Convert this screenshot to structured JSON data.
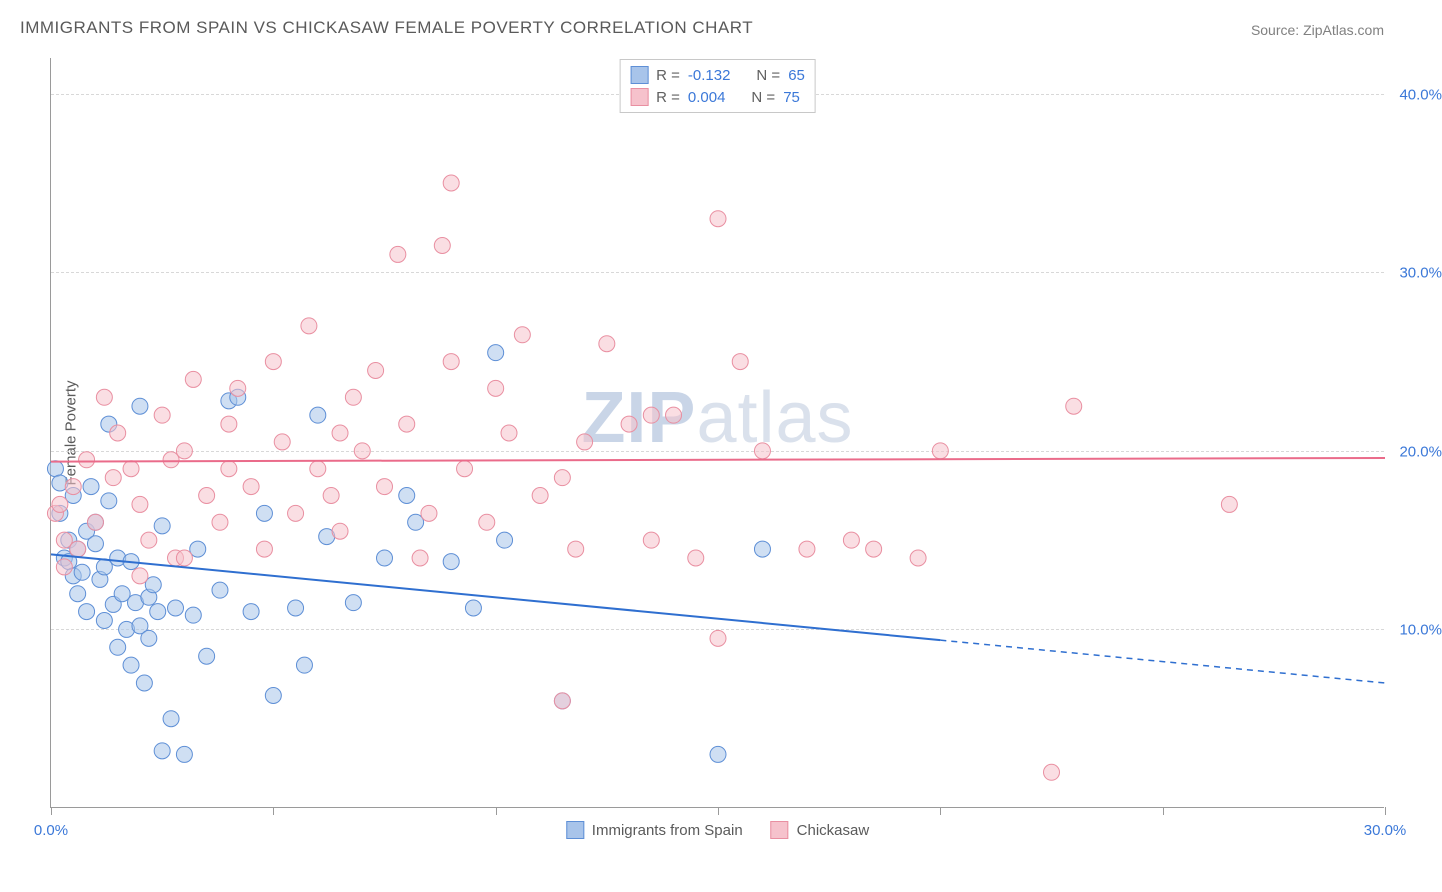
{
  "title": "IMMIGRANTS FROM SPAIN VS CHICKASAW FEMALE POVERTY CORRELATION CHART",
  "source": "Source: ZipAtlas.com",
  "ylabel": "Female Poverty",
  "watermark_bold": "ZIP",
  "watermark_light": "atlas",
  "chart": {
    "type": "scatter",
    "background_color": "#ffffff",
    "grid_color": "#d8d8d8",
    "axis_color": "#9a9a9a",
    "xlim": [
      0,
      30
    ],
    "ylim": [
      0,
      42
    ],
    "yticks": [
      10,
      20,
      30,
      40
    ],
    "ytick_labels": [
      "10.0%",
      "20.0%",
      "30.0%",
      "40.0%"
    ],
    "xticks": [
      0,
      5,
      10,
      15,
      20,
      25,
      30
    ],
    "xtick_labels": {
      "0": "0.0%",
      "30": "30.0%"
    },
    "label_fontsize": 15,
    "label_color": "#3b78d8",
    "marker_radius": 8,
    "marker_opacity": 0.55,
    "line_width": 2
  },
  "series": [
    {
      "name": "Immigrants from Spain",
      "fill_color": "#a8c4ea",
      "stroke_color": "#5e8fd6",
      "line_color": "#2f6fd0",
      "R": "-0.132",
      "N": "65",
      "trend": {
        "y_at_x0": 14.2,
        "y_at_x30": 7.0,
        "solid_until_x": 20
      },
      "points": [
        [
          0.1,
          19.0
        ],
        [
          0.2,
          16.5
        ],
        [
          0.2,
          18.2
        ],
        [
          0.3,
          14.0
        ],
        [
          0.4,
          13.8
        ],
        [
          0.4,
          15.0
        ],
        [
          0.5,
          17.5
        ],
        [
          0.5,
          13.0
        ],
        [
          0.6,
          14.5
        ],
        [
          0.6,
          12.0
        ],
        [
          0.7,
          13.2
        ],
        [
          0.8,
          15.5
        ],
        [
          0.8,
          11.0
        ],
        [
          0.9,
          18.0
        ],
        [
          1.0,
          14.8
        ],
        [
          1.0,
          16.0
        ],
        [
          1.1,
          12.8
        ],
        [
          1.2,
          10.5
        ],
        [
          1.2,
          13.5
        ],
        [
          1.3,
          17.2
        ],
        [
          1.4,
          11.4
        ],
        [
          1.5,
          14.0
        ],
        [
          1.5,
          9.0
        ],
        [
          1.6,
          12.0
        ],
        [
          1.7,
          10.0
        ],
        [
          1.8,
          13.8
        ],
        [
          1.8,
          8.0
        ],
        [
          1.9,
          11.5
        ],
        [
          2.0,
          22.5
        ],
        [
          2.0,
          10.2
        ],
        [
          2.1,
          7.0
        ],
        [
          2.2,
          11.8
        ],
        [
          2.2,
          9.5
        ],
        [
          2.3,
          12.5
        ],
        [
          2.4,
          11.0
        ],
        [
          2.5,
          15.8
        ],
        [
          2.5,
          3.2
        ],
        [
          2.7,
          5.0
        ],
        [
          2.8,
          11.2
        ],
        [
          3.0,
          3.0
        ],
        [
          3.2,
          10.8
        ],
        [
          3.3,
          14.5
        ],
        [
          3.5,
          8.5
        ],
        [
          3.8,
          12.2
        ],
        [
          4.0,
          22.8
        ],
        [
          4.2,
          23.0
        ],
        [
          4.5,
          11.0
        ],
        [
          4.8,
          16.5
        ],
        [
          5.5,
          11.2
        ],
        [
          5.7,
          8.0
        ],
        [
          6.0,
          22.0
        ],
        [
          6.2,
          15.2
        ],
        [
          6.8,
          11.5
        ],
        [
          7.5,
          14.0
        ],
        [
          8.0,
          17.5
        ],
        [
          8.2,
          16.0
        ],
        [
          9.0,
          13.8
        ],
        [
          9.5,
          11.2
        ],
        [
          10.0,
          25.5
        ],
        [
          10.2,
          15.0
        ],
        [
          11.5,
          6.0
        ],
        [
          15.0,
          3.0
        ],
        [
          16.0,
          14.5
        ],
        [
          5.0,
          6.3
        ],
        [
          1.3,
          21.5
        ]
      ]
    },
    {
      "name": "Chickasaw",
      "fill_color": "#f6c2cc",
      "stroke_color": "#e98fa1",
      "line_color": "#ea6b8a",
      "R": "0.004",
      "N": "75",
      "trend": {
        "y_at_x0": 19.4,
        "y_at_x30": 19.6,
        "solid_until_x": 30
      },
      "points": [
        [
          0.1,
          16.5
        ],
        [
          0.2,
          17.0
        ],
        [
          0.3,
          15.0
        ],
        [
          0.3,
          13.5
        ],
        [
          0.5,
          18.0
        ],
        [
          0.6,
          14.5
        ],
        [
          0.8,
          19.5
        ],
        [
          1.0,
          16.0
        ],
        [
          1.2,
          23.0
        ],
        [
          1.4,
          18.5
        ],
        [
          1.5,
          21.0
        ],
        [
          1.8,
          19.0
        ],
        [
          2.0,
          17.0
        ],
        [
          2.2,
          15.0
        ],
        [
          2.5,
          22.0
        ],
        [
          2.7,
          19.5
        ],
        [
          2.8,
          14.0
        ],
        [
          3.0,
          20.0
        ],
        [
          3.2,
          24.0
        ],
        [
          3.5,
          17.5
        ],
        [
          3.8,
          16.0
        ],
        [
          4.0,
          21.5
        ],
        [
          4.2,
          23.5
        ],
        [
          4.5,
          18.0
        ],
        [
          4.8,
          14.5
        ],
        [
          5.0,
          25.0
        ],
        [
          5.2,
          20.5
        ],
        [
          5.5,
          16.5
        ],
        [
          5.8,
          27.0
        ],
        [
          6.0,
          19.0
        ],
        [
          6.3,
          17.5
        ],
        [
          6.5,
          15.5
        ],
        [
          6.8,
          23.0
        ],
        [
          7.0,
          20.0
        ],
        [
          7.3,
          24.5
        ],
        [
          7.5,
          18.0
        ],
        [
          7.8,
          31.0
        ],
        [
          8.0,
          21.5
        ],
        [
          8.3,
          14.0
        ],
        [
          8.5,
          16.5
        ],
        [
          8.8,
          31.5
        ],
        [
          9.0,
          25.0
        ],
        [
          9.3,
          19.0
        ],
        [
          9.0,
          35.0
        ],
        [
          9.8,
          16.0
        ],
        [
          10.0,
          23.5
        ],
        [
          10.3,
          21.0
        ],
        [
          10.6,
          26.5
        ],
        [
          11.0,
          17.5
        ],
        [
          11.5,
          18.5
        ],
        [
          11.5,
          6.0
        ],
        [
          12.0,
          20.5
        ],
        [
          12.5,
          26.0
        ],
        [
          13.0,
          21.5
        ],
        [
          13.5,
          15.0
        ],
        [
          14.0,
          22.0
        ],
        [
          14.5,
          14.0
        ],
        [
          15.0,
          33.0
        ],
        [
          15.0,
          9.5
        ],
        [
          15.5,
          25.0
        ],
        [
          16.0,
          20.0
        ],
        [
          17.0,
          14.5
        ],
        [
          18.0,
          15.0
        ],
        [
          18.5,
          14.5
        ],
        [
          19.5,
          14.0
        ],
        [
          20.0,
          20.0
        ],
        [
          23.0,
          22.5
        ],
        [
          22.5,
          2.0
        ],
        [
          26.5,
          17.0
        ],
        [
          4.0,
          19.0
        ],
        [
          6.5,
          21.0
        ],
        [
          2.0,
          13.0
        ],
        [
          3.0,
          14.0
        ],
        [
          11.8,
          14.5
        ],
        [
          13.5,
          22.0
        ]
      ]
    }
  ],
  "legend_top": {
    "r_label": "R =",
    "n_label": "N ="
  },
  "legend_bottom": {
    "series_1": "Immigrants from Spain",
    "series_2": "Chickasaw"
  }
}
